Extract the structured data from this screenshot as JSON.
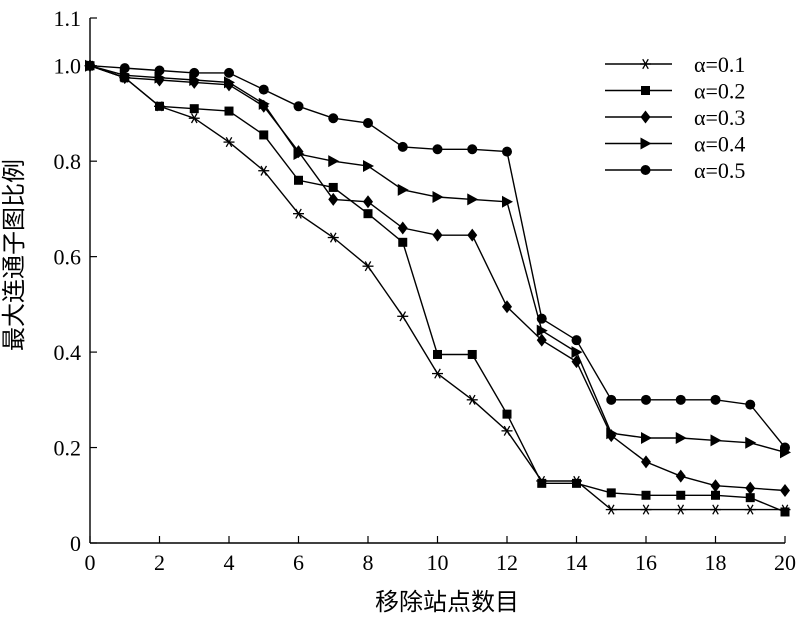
{
  "chart_data": {
    "type": "line",
    "xlabel": "移除站点数目",
    "ylabel": "最大连通子图比例",
    "xlim": [
      0,
      20
    ],
    "ylim": [
      0,
      1.1
    ],
    "x_ticks": [
      0,
      2,
      4,
      6,
      8,
      10,
      12,
      14,
      16,
      18,
      20
    ],
    "y_tick_labels": [
      "0",
      "0.2",
      "0.4",
      "0.6",
      "0.8",
      "1.0",
      "1.1"
    ],
    "y_tick_values": [
      0,
      0.2,
      0.4,
      0.6,
      0.8,
      1.0,
      1.1
    ],
    "grid": false,
    "legend_position": "top-right",
    "x": [
      0,
      1,
      2,
      3,
      4,
      5,
      6,
      7,
      8,
      9,
      10,
      11,
      12,
      13,
      14,
      15,
      16,
      17,
      18,
      19,
      20
    ],
    "series": [
      {
        "name": "α=0.1",
        "marker": "asterisk",
        "values": [
          1.0,
          0.975,
          0.915,
          0.89,
          0.84,
          0.78,
          0.69,
          0.64,
          0.58,
          0.475,
          0.355,
          0.3,
          0.235,
          0.13,
          0.13,
          0.07,
          0.07,
          0.07,
          0.07,
          0.07,
          0.07
        ]
      },
      {
        "name": "α=0.2",
        "marker": "square",
        "values": [
          1.0,
          0.975,
          0.915,
          0.91,
          0.905,
          0.855,
          0.76,
          0.745,
          0.69,
          0.63,
          0.395,
          0.395,
          0.27,
          0.125,
          0.125,
          0.105,
          0.1,
          0.1,
          0.1,
          0.095,
          0.065
        ]
      },
      {
        "name": "α=0.3",
        "marker": "diamond",
        "values": [
          1.0,
          0.975,
          0.97,
          0.965,
          0.96,
          0.915,
          0.82,
          0.72,
          0.715,
          0.66,
          0.645,
          0.645,
          0.495,
          0.425,
          0.38,
          0.225,
          0.17,
          0.14,
          0.12,
          0.115,
          0.11
        ]
      },
      {
        "name": "α=0.4",
        "marker": "triangle-right",
        "values": [
          1.0,
          0.98,
          0.975,
          0.97,
          0.965,
          0.92,
          0.815,
          0.8,
          0.79,
          0.74,
          0.725,
          0.72,
          0.715,
          0.445,
          0.4,
          0.23,
          0.22,
          0.22,
          0.215,
          0.21,
          0.19
        ]
      },
      {
        "name": "α=0.5",
        "marker": "circle",
        "values": [
          1.0,
          0.995,
          0.99,
          0.985,
          0.985,
          0.95,
          0.915,
          0.89,
          0.88,
          0.83,
          0.825,
          0.825,
          0.82,
          0.47,
          0.425,
          0.3,
          0.3,
          0.3,
          0.3,
          0.29,
          0.2
        ]
      }
    ]
  }
}
